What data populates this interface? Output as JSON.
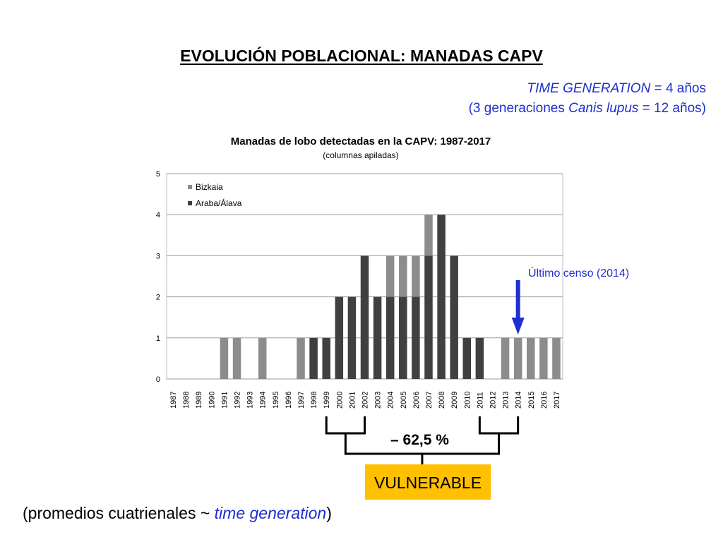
{
  "slide": {
    "title": "EVOLUCIÓN POBLACIONAL: MANADAS CAPV",
    "time_generation": {
      "label": "TIME GENERATION",
      "equals": " = 4 años",
      "line2_start": "(3 generaciones ",
      "species": "Canis lupus",
      "line2_end": " = 12 años)"
    },
    "annotation_last_census": "Último censo (2014)",
    "decline_label": "– 62,5 %",
    "status_badge": "VULNERABLE",
    "footnote": {
      "open": "(promedios cuatrienales ~ ",
      "emphasis": "time generation",
      "close": ")"
    }
  },
  "colors": {
    "bizkaia": "#8c8c8c",
    "araba": "#404040",
    "accent_blue": "#1f2ed0",
    "badge": "#ffc000",
    "gridline": "#9a9a9a"
  },
  "chart_data": {
    "type": "bar",
    "stacked": true,
    "title": "Manadas de lobo detectadas en la CAPV: 1987-2017",
    "subtitle": "(columnas apiladas)",
    "xlabel": "",
    "ylabel": "",
    "ylim": [
      0,
      5
    ],
    "yticks": [
      0,
      1,
      2,
      3,
      4,
      5
    ],
    "grid": true,
    "legend_position": "top-left",
    "categories": [
      "1987",
      "1988",
      "1989",
      "1990",
      "1991",
      "1992",
      "1993",
      "1994",
      "1995",
      "1996",
      "1997",
      "1998",
      "1999",
      "2000",
      "2001",
      "2002",
      "2003",
      "2004",
      "2005",
      "2006",
      "2007",
      "2008",
      "2009",
      "2010",
      "2011",
      "2012",
      "2013",
      "2014",
      "2015",
      "2016",
      "2017"
    ],
    "series": [
      {
        "name": "Araba/Álava",
        "color": "#404040",
        "values": [
          0,
          0,
          0,
          0,
          0,
          0,
          0,
          0,
          0,
          0,
          0,
          1,
          1,
          2,
          2,
          3,
          2,
          2,
          2,
          2,
          3,
          4,
          3,
          1,
          1,
          0,
          0,
          0,
          0,
          0,
          0
        ]
      },
      {
        "name": "Bizkaia",
        "color": "#8c8c8c",
        "values": [
          0,
          0,
          0,
          0,
          1,
          1,
          0,
          1,
          0,
          0,
          1,
          0,
          0,
          0,
          0,
          0,
          0,
          1,
          1,
          1,
          1,
          0,
          0,
          0,
          0,
          0,
          1,
          1,
          1,
          1,
          1
        ]
      }
    ],
    "legend_order": [
      "Bizkaia",
      "Araba/Álava"
    ],
    "annotations": [
      {
        "text": "Último censo (2014)",
        "category": "2014"
      }
    ],
    "brackets": [
      {
        "from": "1999",
        "to": "2002"
      },
      {
        "from": "2011",
        "to": "2014"
      }
    ]
  }
}
